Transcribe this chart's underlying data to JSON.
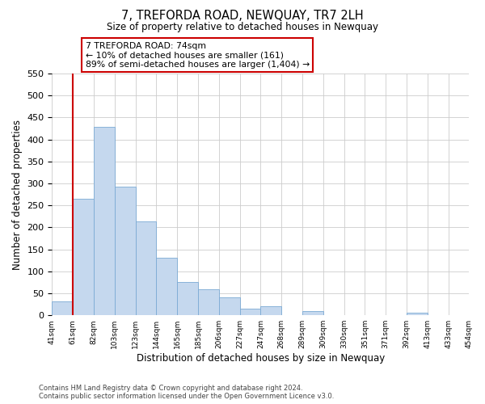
{
  "title": "7, TREFORDA ROAD, NEWQUAY, TR7 2LH",
  "subtitle": "Size of property relative to detached houses in Newquay",
  "xlabel": "Distribution of detached houses by size in Newquay",
  "ylabel": "Number of detached properties",
  "bin_labels": [
    "41sqm",
    "61sqm",
    "82sqm",
    "103sqm",
    "123sqm",
    "144sqm",
    "165sqm",
    "185sqm",
    "206sqm",
    "227sqm",
    "247sqm",
    "268sqm",
    "289sqm",
    "309sqm",
    "330sqm",
    "351sqm",
    "371sqm",
    "392sqm",
    "413sqm",
    "433sqm",
    "454sqm"
  ],
  "bar_heights": [
    32,
    265,
    428,
    293,
    214,
    130,
    76,
    59,
    40,
    15,
    21,
    0,
    10,
    0,
    0,
    0,
    0,
    5,
    0,
    0,
    5
  ],
  "bar_color": "#c5d8ee",
  "bar_edge_color": "#7baad4",
  "vline_x_index": 1,
  "vline_color": "#cc0000",
  "ylim": [
    0,
    550
  ],
  "yticks": [
    0,
    50,
    100,
    150,
    200,
    250,
    300,
    350,
    400,
    450,
    500,
    550
  ],
  "annotation_title": "7 TREFORDA ROAD: 74sqm",
  "annotation_line1": "← 10% of detached houses are smaller (161)",
  "annotation_line2": "89% of semi-detached houses are larger (1,404) →",
  "footer_line1": "Contains HM Land Registry data © Crown copyright and database right 2024.",
  "footer_line2": "Contains public sector information licensed under the Open Government Licence v3.0.",
  "background_color": "#ffffff",
  "grid_color": "#cccccc"
}
